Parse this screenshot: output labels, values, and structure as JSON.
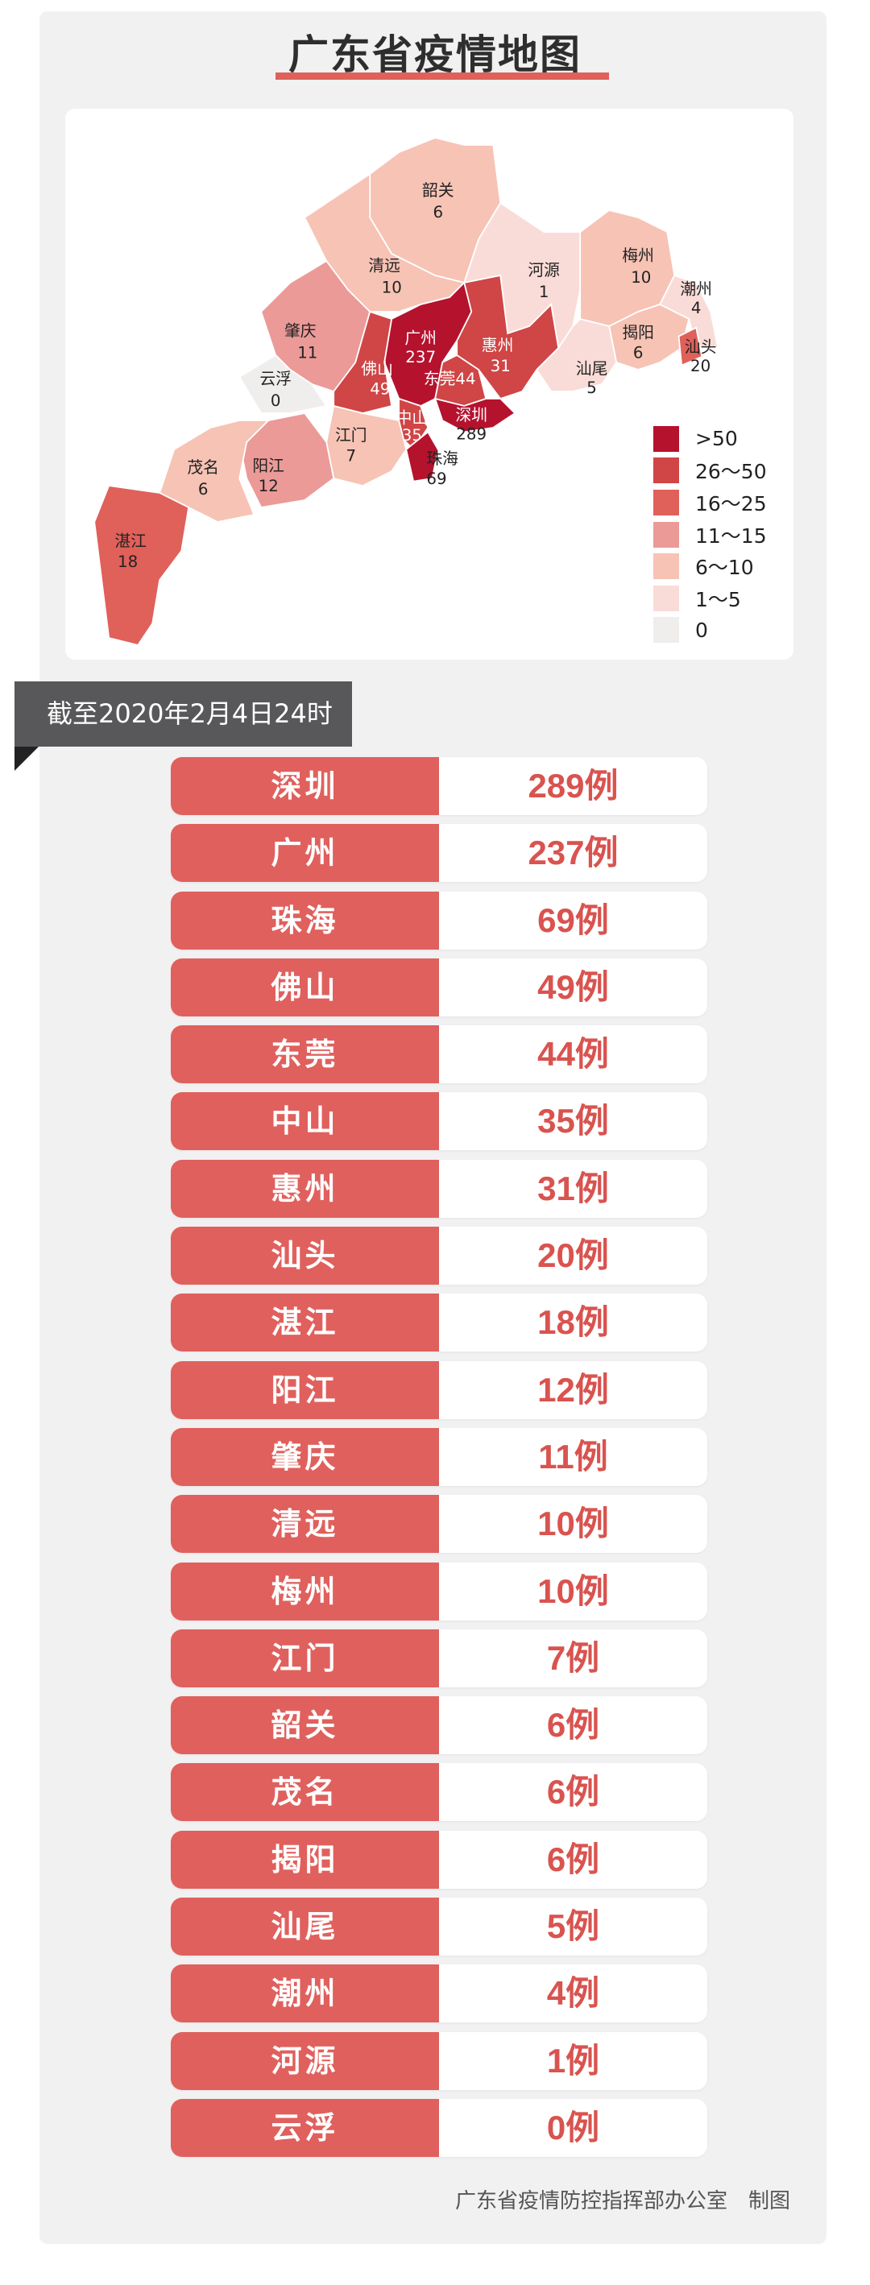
{
  "title": "广东省疫情地图",
  "colors": {
    "gt50": "#b5122e",
    "26_50": "#d04545",
    "16_25": "#e0605a",
    "11_15": "#eb9a98",
    "6_10": "#f6c3b5",
    "1_5": "#f9dcd8",
    "0": "#f0eded",
    "row_accent": "#e0605d"
  },
  "map": {
    "regions": {
      "shaoguan": {
        "name": "韶关",
        "count": "6"
      },
      "qingyuan": {
        "name": "清远",
        "count": "10"
      },
      "heyuan": {
        "name": "河源",
        "count": "1"
      },
      "meizhou": {
        "name": "梅州",
        "count": "10"
      },
      "chaozhou": {
        "name": "潮州",
        "count": "4"
      },
      "jieyang": {
        "name": "揭阳",
        "count": "6"
      },
      "shantou": {
        "name": "汕头",
        "count": "20"
      },
      "shanwei": {
        "name": "汕尾",
        "count": "5"
      },
      "huizhou": {
        "name": "惠州",
        "count": "31"
      },
      "guangzhou": {
        "name": "广州",
        "count": "237"
      },
      "dongguan": {
        "name": "东莞",
        "count": "44"
      },
      "shenzhen": {
        "name": "深圳",
        "count": "289"
      },
      "foshan": {
        "name": "佛山",
        "count": "49"
      },
      "zhongshan": {
        "name": "中山",
        "count": "35"
      },
      "zhuhai": {
        "name": "珠海",
        "count": "69"
      },
      "jiangmen": {
        "name": "江门",
        "count": "7"
      },
      "zhaoqing": {
        "name": "肇庆",
        "count": "11"
      },
      "yunfu": {
        "name": "云浮",
        "count": "0"
      },
      "yangjiang": {
        "name": "阳江",
        "count": "12"
      },
      "maoming": {
        "name": "茂名",
        "count": "6"
      },
      "zhanjiang": {
        "name": "湛江",
        "count": "18"
      }
    },
    "legend": [
      ">50",
      "26～50",
      "16～25",
      "11～15",
      "6～10",
      "1～5",
      "0"
    ]
  },
  "as_of": "截至2020年2月4日24时",
  "table": [
    {
      "city": "深圳",
      "count": "289例"
    },
    {
      "city": "广州",
      "count": "237例"
    },
    {
      "city": "珠海",
      "count": "69例"
    },
    {
      "city": "佛山",
      "count": "49例"
    },
    {
      "city": "东莞",
      "count": "44例"
    },
    {
      "city": "中山",
      "count": "35例"
    },
    {
      "city": "惠州",
      "count": "31例"
    },
    {
      "city": "汕头",
      "count": "20例"
    },
    {
      "city": "湛江",
      "count": "18例"
    },
    {
      "city": "阳江",
      "count": "12例"
    },
    {
      "city": "肇庆",
      "count": "11例"
    },
    {
      "city": "清远",
      "count": "10例"
    },
    {
      "city": "梅州",
      "count": "10例"
    },
    {
      "city": "江门",
      "count": "7例"
    },
    {
      "city": "韶关",
      "count": "6例"
    },
    {
      "city": "茂名",
      "count": "6例"
    },
    {
      "city": "揭阳",
      "count": "6例"
    },
    {
      "city": "汕尾",
      "count": "5例"
    },
    {
      "city": "潮州",
      "count": "4例"
    },
    {
      "city": "河源",
      "count": "1例"
    },
    {
      "city": "云浮",
      "count": "0例"
    }
  ],
  "footer": "广东省疫情防控指挥部办公室　制图"
}
